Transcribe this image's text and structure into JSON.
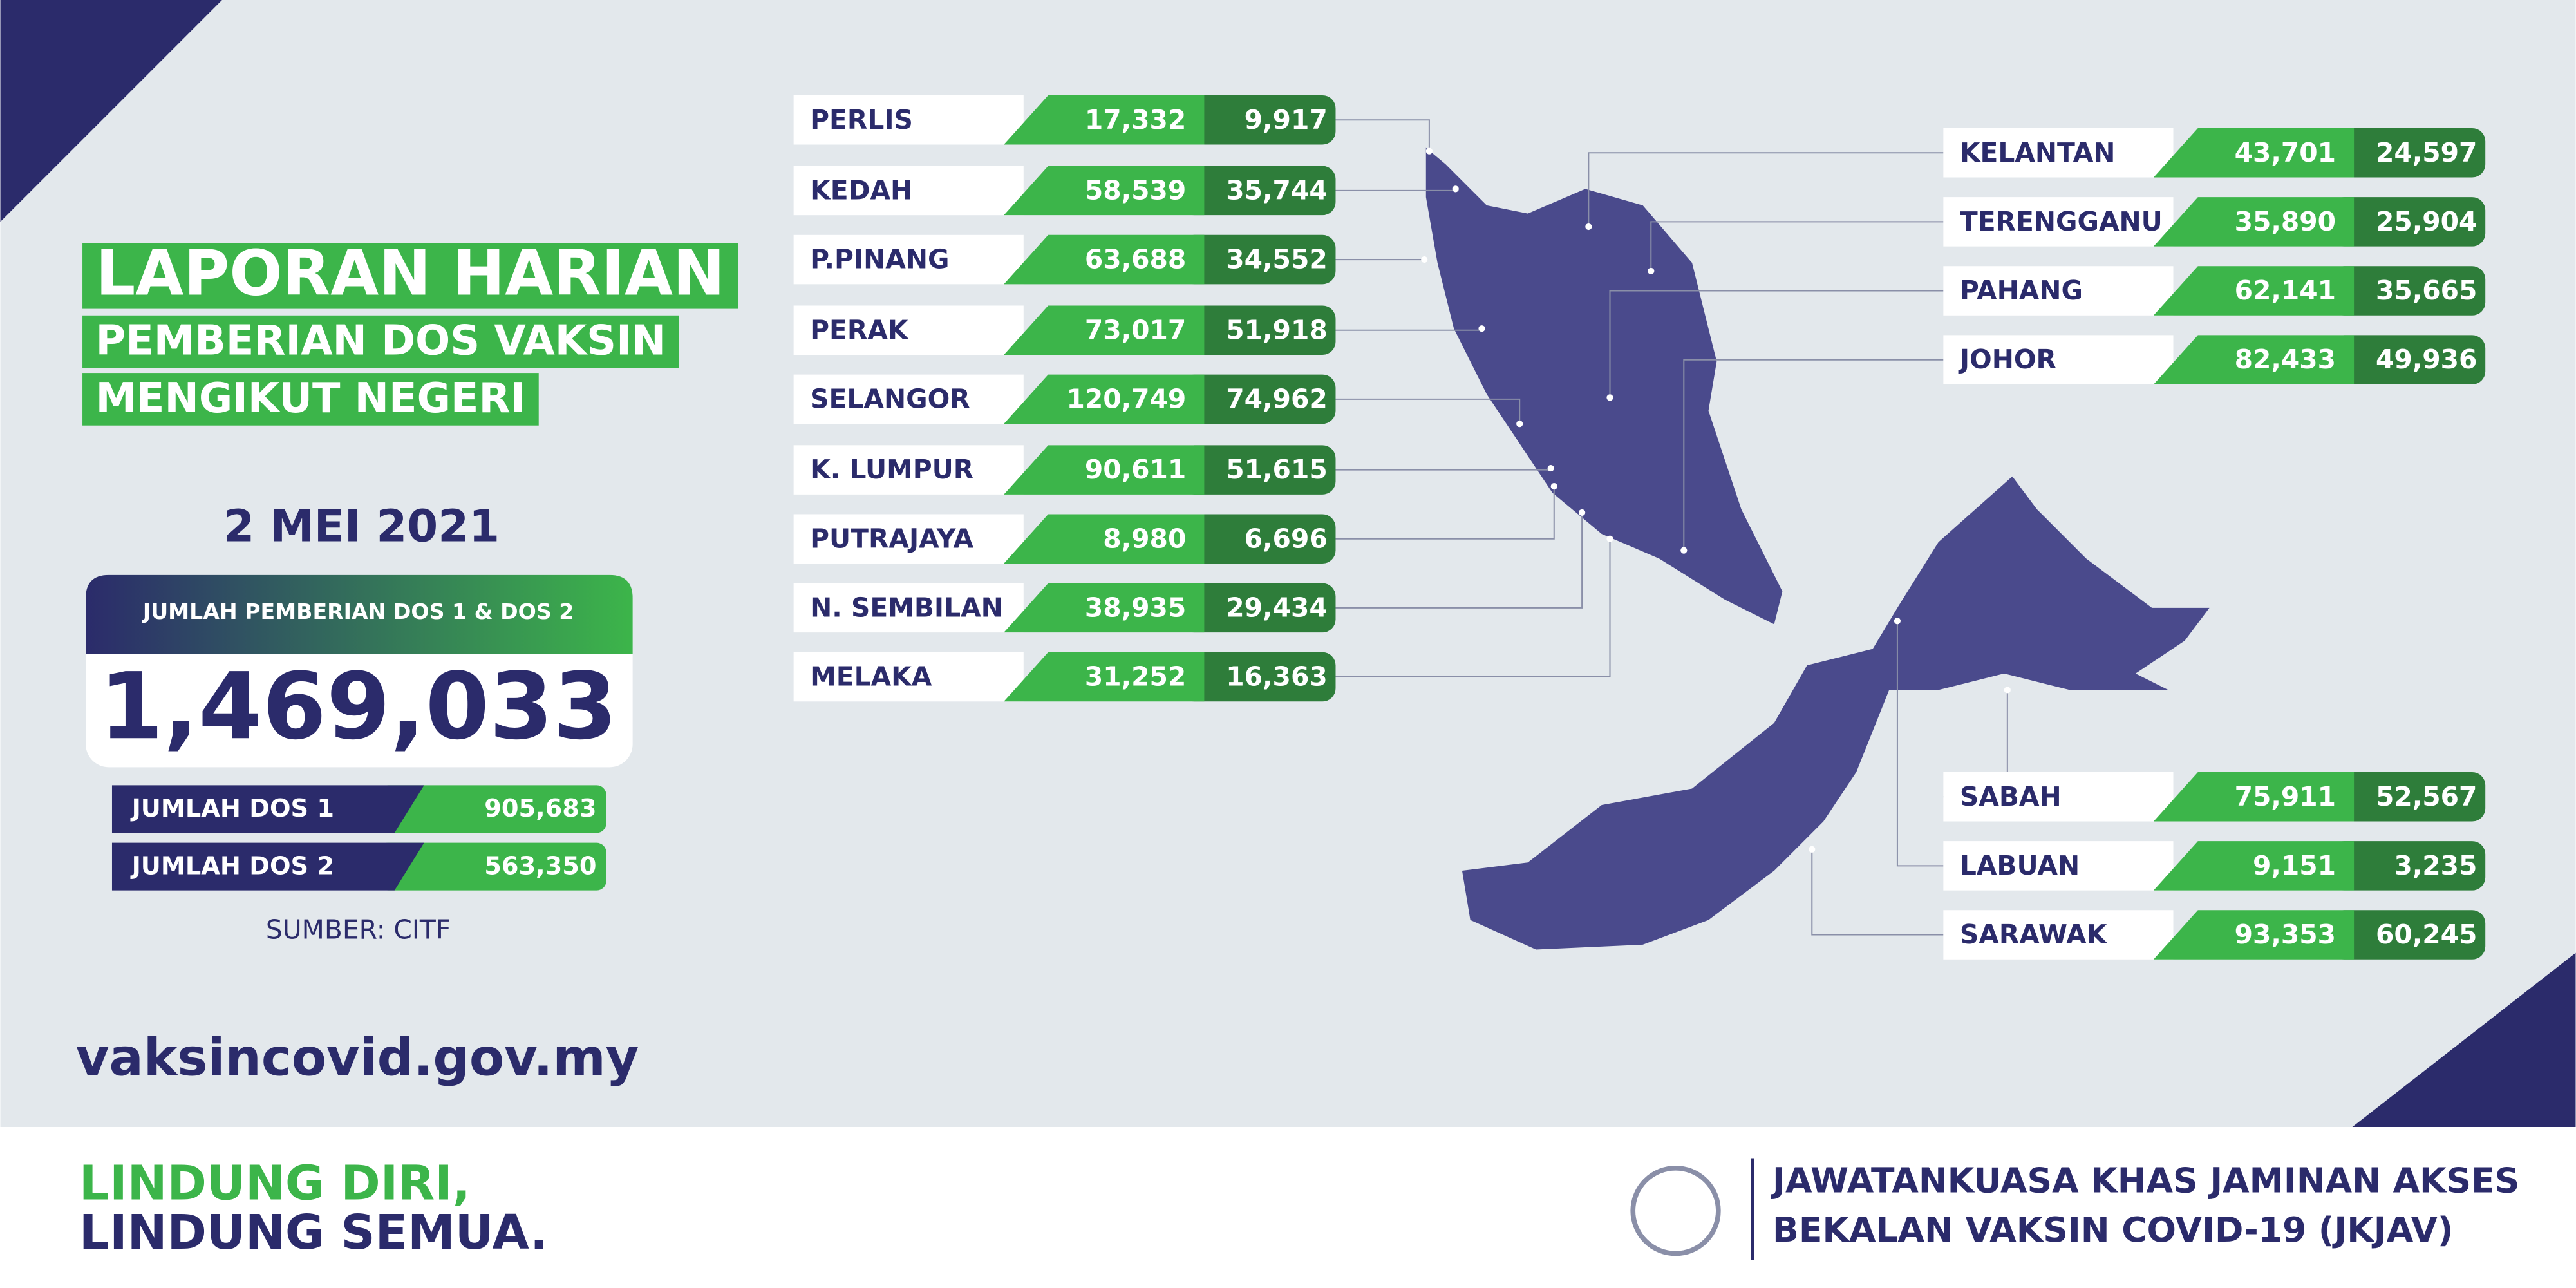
{
  "title": [
    "LAPORAN HARIAN",
    "PEMBERIAN DOS VAKSIN",
    "MENGIKUT NEGERI"
  ],
  "date": "2 MEI 2021",
  "total": {
    "label": "JUMLAH PEMBERIAN DOS 1 & DOS 2",
    "value": "1,469,033"
  },
  "doses": [
    {
      "label": "JUMLAH DOS 1",
      "value": "905,683"
    },
    {
      "label": "JUMLAH DOS 2",
      "value": "563,350"
    }
  ],
  "source": "SUMBER: CITF",
  "website": "vaksincovid.gov.my",
  "slogan": [
    "LINDUNG DIRI,",
    "LINDUNG SEMUA."
  ],
  "agency": [
    "JAWATANKUASA KHAS JAMINAN AKSES",
    "BEKALAN VAKSIN COVID-19 (JKJAV)"
  ],
  "states": [
    {
      "name": "PERLIS",
      "dose1": "17,332",
      "dose2": "9,917"
    },
    {
      "name": "KEDAH",
      "dose1": "58,539",
      "dose2": "35,744"
    },
    {
      "name": "P.PINANG",
      "dose1": "63,688",
      "dose2": "34,552"
    },
    {
      "name": "PERAK",
      "dose1": "73,017",
      "dose2": "51,918"
    },
    {
      "name": "SELANGOR",
      "dose1": "120,749",
      "dose2": "74,962"
    },
    {
      "name": "K. LUMPUR",
      "dose1": "90,611",
      "dose2": "51,615"
    },
    {
      "name": "PUTRAJAYA",
      "dose1": "8,980",
      "dose2": "6,696"
    },
    {
      "name": "N. SEMBILAN",
      "dose1": "38,935",
      "dose2": "29,434"
    },
    {
      "name": "MELAKA",
      "dose1": "31,252",
      "dose2": "16,363"
    },
    {
      "name": "KELANTAN",
      "dose1": "43,701",
      "dose2": "24,597"
    },
    {
      "name": "TERENGGANU",
      "dose1": "35,890",
      "dose2": "25,904"
    },
    {
      "name": "PAHANG",
      "dose1": "62,141",
      "dose2": "35,665"
    },
    {
      "name": "JOHOR",
      "dose1": "82,433",
      "dose2": "49,936"
    },
    {
      "name": "SABAH",
      "dose1": "75,911",
      "dose2": "52,567"
    },
    {
      "name": "LABUAN",
      "dose1": "9,151",
      "dose2": "3,235"
    },
    {
      "name": "SARAWAK",
      "dose1": "93,353",
      "dose2": "60,245"
    }
  ]
}
